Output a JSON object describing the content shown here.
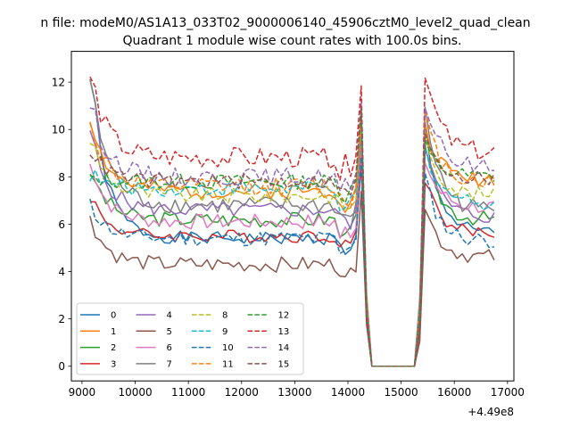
{
  "chart_data": {
    "type": "line",
    "suptitle": "n file: modeM0/AS1A13_033T02_9000006140_45906cztM0_level2_quad_clean",
    "title": "Quadrant 1 module wise count rates with 100.0s bins.",
    "xlabel": "",
    "ylabel": "",
    "offset_text": "+4.49e8",
    "xlim": [
      8800,
      17120
    ],
    "ylim": [
      -0.62,
      13.3
    ],
    "xticks": [
      9000,
      10000,
      11000,
      12000,
      13000,
      14000,
      15000,
      16000,
      17000
    ],
    "yticks": [
      0,
      2,
      4,
      6,
      8,
      10,
      12
    ],
    "gap": {
      "start": 14450,
      "end": 15250,
      "value": 0
    },
    "segment1": {
      "x_start": 9150,
      "x_end": 14350,
      "step": 100
    },
    "segment2": {
      "x_start": 15350,
      "x_end": 16750,
      "step": 100
    },
    "legend": {
      "position": "lower left",
      "columns": 4
    },
    "series": [
      {
        "name": "0",
        "color": "#1f77b4",
        "dash": "solid",
        "start": 12.1,
        "level": 5.4,
        "seg2_start": 10.2,
        "seg2_level": 5.6,
        "amp": 0.25,
        "seed": 1
      },
      {
        "name": "1",
        "color": "#ff7f0e",
        "dash": "solid",
        "start": 10.4,
        "level": 7.4,
        "seg2_start": 10.1,
        "seg2_level": 7.9,
        "amp": 0.3,
        "seed": 2
      },
      {
        "name": "2",
        "color": "#2ca02c",
        "dash": "solid",
        "start": 8.3,
        "level": 6.2,
        "seg2_start": 9.0,
        "seg2_level": 6.2,
        "amp": 0.3,
        "seed": 3
      },
      {
        "name": "3",
        "color": "#d62728",
        "dash": "solid",
        "start": 7.2,
        "level": 5.5,
        "seg2_start": 8.0,
        "seg2_level": 5.6,
        "amp": 0.25,
        "seed": 4
      },
      {
        "name": "4",
        "color": "#9467bd",
        "dash": "solid",
        "start": 9.7,
        "level": 6.6,
        "seg2_start": 9.4,
        "seg2_level": 6.3,
        "amp": 0.3,
        "seed": 5
      },
      {
        "name": "5",
        "color": "#8c564b",
        "dash": "solid",
        "start": 6.2,
        "level": 4.3,
        "seg2_start": 6.8,
        "seg2_level": 4.6,
        "amp": 0.3,
        "seed": 6
      },
      {
        "name": "6",
        "color": "#e377c2",
        "dash": "solid",
        "start": 8.5,
        "level": 6.1,
        "seg2_start": 8.7,
        "seg2_level": 6.7,
        "amp": 0.3,
        "seed": 7
      },
      {
        "name": "7",
        "color": "#7f7f7f",
        "dash": "solid",
        "start": 12.2,
        "level": 6.8,
        "seg2_start": 11.0,
        "seg2_level": 6.6,
        "amp": 0.35,
        "seed": 8
      },
      {
        "name": "8",
        "color": "#bcbd22",
        "dash": "dashed",
        "start": 9.6,
        "level": 7.2,
        "seg2_start": 9.9,
        "seg2_level": 7.2,
        "amp": 0.3,
        "seed": 9
      },
      {
        "name": "9",
        "color": "#17becf",
        "dash": "dashed",
        "start": 8.1,
        "level": 7.5,
        "seg2_start": 9.3,
        "seg2_level": 6.9,
        "amp": 0.3,
        "seed": 10
      },
      {
        "name": "10",
        "color": "#1f77b4",
        "dash": "dashed",
        "start": 6.8,
        "level": 5.4,
        "seg2_start": 8.0,
        "seg2_level": 5.3,
        "amp": 0.3,
        "seed": 11
      },
      {
        "name": "11",
        "color": "#ff7f0e",
        "dash": "dashed",
        "start": 10.1,
        "level": 7.6,
        "seg2_start": 10.6,
        "seg2_level": 7.8,
        "amp": 0.35,
        "seed": 12
      },
      {
        "name": "12",
        "color": "#2ca02c",
        "dash": "dashed",
        "start": 8.0,
        "level": 7.8,
        "seg2_start": 9.3,
        "seg2_level": 8.0,
        "amp": 0.3,
        "seed": 13
      },
      {
        "name": "13",
        "color": "#d62728",
        "dash": "dashed",
        "start": 12.3,
        "level": 8.8,
        "seg2_start": 12.6,
        "seg2_level": 9.0,
        "amp": 0.4,
        "seed": 14
      },
      {
        "name": "14",
        "color": "#9467bd",
        "dash": "dashed",
        "start": 11.1,
        "level": 8.0,
        "seg2_start": 11.2,
        "seg2_level": 8.4,
        "amp": 0.35,
        "seed": 15
      },
      {
        "name": "15",
        "color": "#8c564b",
        "dash": "dashed",
        "start": 9.2,
        "level": 7.8,
        "seg2_start": 10.0,
        "seg2_level": 7.9,
        "amp": 0.3,
        "seed": 16
      }
    ]
  }
}
